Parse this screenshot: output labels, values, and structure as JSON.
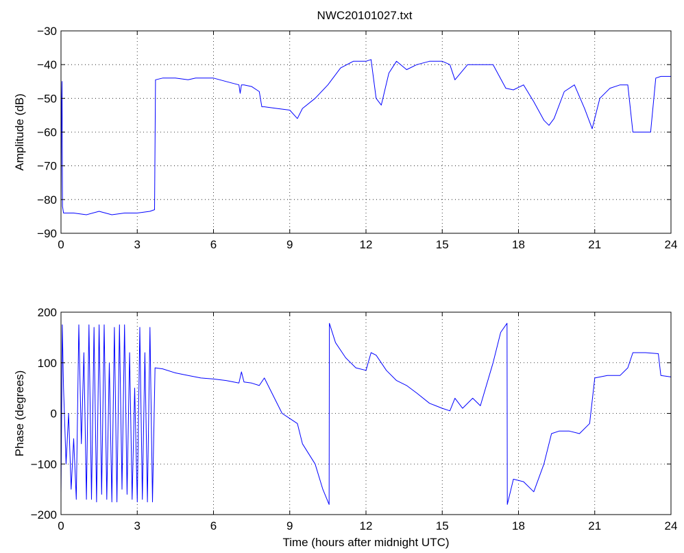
{
  "figure": {
    "title": "NWC20101027.txt"
  },
  "chart_data": [
    {
      "type": "line",
      "title": "NWC20101027.txt",
      "xlabel": "",
      "ylabel": "Amplitude (dB)",
      "xlim": [
        0,
        24
      ],
      "ylim": [
        -90,
        -30
      ],
      "xticks": [
        0,
        3,
        6,
        9,
        12,
        15,
        18,
        21,
        24
      ],
      "yticks": [
        -90,
        -80,
        -70,
        -60,
        -50,
        -40,
        -30
      ],
      "xtick_labels": [
        "0",
        "3",
        "6",
        "9",
        "12",
        "15",
        "18",
        "21",
        "24"
      ],
      "ytick_labels": [
        "−90",
        "−80",
        "−70",
        "−60",
        "−50",
        "−40",
        "−30"
      ],
      "grid": true,
      "color": "#0000ff",
      "series": [
        {
          "x": [
            0,
            0.02,
            0.04,
            0.06,
            0.1,
            0.2,
            0.5,
            1.0,
            1.5,
            2.0,
            2.5,
            3.0,
            3.5,
            3.68,
            3.72,
            4.0,
            4.5,
            5.0,
            5.3,
            5.5,
            6.0,
            6.5,
            7.0,
            7.05,
            7.1,
            7.2,
            7.5,
            7.8,
            7.9,
            8.0,
            8.5,
            9.0,
            9.3,
            9.5,
            10.0,
            10.5,
            11.0,
            11.5,
            12.0,
            12.2,
            12.4,
            12.6,
            12.9,
            13.2,
            13.6,
            14.0,
            14.5,
            15.0,
            15.3,
            15.5,
            16.0,
            16.5,
            17.0,
            17.5,
            17.8,
            18.2,
            18.6,
            19.0,
            19.2,
            19.4,
            19.8,
            20.2,
            20.6,
            20.9,
            21.2,
            21.6,
            22.0,
            22.3,
            22.5,
            22.8,
            23.0,
            23.2,
            23.4,
            23.6,
            24.0
          ],
          "y": [
            -84,
            -56,
            -45,
            -82,
            -84,
            -84,
            -84,
            -84.5,
            -83.5,
            -84.5,
            -84,
            -84,
            -83.5,
            -83,
            -44.5,
            -44,
            -44,
            -44.5,
            -44,
            -44,
            -44,
            -45,
            -46,
            -48.5,
            -46,
            -46,
            -46.5,
            -48,
            -52.5,
            -52.5,
            -53,
            -53.5,
            -56,
            -53,
            -50,
            -46,
            -41,
            -39,
            -39,
            -38.5,
            -50,
            -52,
            -42.5,
            -39,
            -41.5,
            -40,
            -39,
            -39,
            -40,
            -44.5,
            -40,
            -40,
            -40,
            -47,
            -47.5,
            -46,
            -51,
            -56.5,
            -58,
            -56,
            -48,
            -46,
            -53,
            -59,
            -50,
            -47,
            -46,
            -46,
            -60,
            -60,
            -60,
            -60,
            -44,
            -43.5,
            -43.5
          ]
        }
      ]
    },
    {
      "type": "line",
      "title": "",
      "xlabel": "Time (hours after midnight UTC)",
      "ylabel": "Phase (degrees)",
      "xlim": [
        0,
        24
      ],
      "ylim": [
        -200,
        200
      ],
      "xticks": [
        0,
        3,
        6,
        9,
        12,
        15,
        18,
        21,
        24
      ],
      "yticks": [
        -200,
        -100,
        0,
        100,
        200
      ],
      "xtick_labels": [
        "0",
        "3",
        "6",
        "9",
        "12",
        "15",
        "18",
        "21",
        "24"
      ],
      "ytick_labels": [
        "−200",
        "−100",
        "0",
        "100",
        "200"
      ],
      "grid": true,
      "color": "#0000ff",
      "series": [
        {
          "x": [
            0,
            0.05,
            0.1,
            0.2,
            0.3,
            0.4,
            0.5,
            0.6,
            0.7,
            0.8,
            0.9,
            1.0,
            1.1,
            1.2,
            1.3,
            1.4,
            1.5,
            1.6,
            1.7,
            1.8,
            1.9,
            2.0,
            2.1,
            2.2,
            2.3,
            2.4,
            2.5,
            2.6,
            2.7,
            2.8,
            2.9,
            3.0,
            3.1,
            3.2,
            3.3,
            3.4,
            3.5,
            3.6,
            3.7,
            4.0,
            4.5,
            5.0,
            5.5,
            6.0,
            6.5,
            7.0,
            7.1,
            7.2,
            7.5,
            7.8,
            8.0,
            8.3,
            8.7,
            9.0,
            9.3,
            9.5,
            10.0,
            10.3,
            10.55,
            10.56,
            10.8,
            11.2,
            11.6,
            12.0,
            12.2,
            12.4,
            12.8,
            13.2,
            13.6,
            14.0,
            14.5,
            15.0,
            15.3,
            15.5,
            15.8,
            16.2,
            16.5,
            17.0,
            17.3,
            17.55,
            17.56,
            17.8,
            18.2,
            18.6,
            19.0,
            19.3,
            19.6,
            20.0,
            20.4,
            20.8,
            21.0,
            21.5,
            22.0,
            22.3,
            22.5,
            23.0,
            23.5,
            23.6,
            24.0
          ],
          "y": [
            -160,
            175,
            50,
            -100,
            0,
            -150,
            -50,
            -170,
            175,
            -60,
            120,
            -170,
            175,
            -170,
            170,
            -175,
            175,
            -160,
            175,
            -170,
            100,
            -175,
            170,
            -175,
            175,
            -150,
            175,
            -160,
            120,
            -170,
            50,
            -175,
            170,
            -170,
            120,
            -175,
            170,
            -175,
            90,
            88,
            80,
            75,
            70,
            68,
            65,
            60,
            82,
            62,
            60,
            55,
            70,
            40,
            0,
            -10,
            -20,
            -60,
            -100,
            -150,
            -180,
            178,
            140,
            110,
            90,
            85,
            120,
            115,
            85,
            65,
            55,
            40,
            20,
            10,
            5,
            30,
            10,
            30,
            15,
            100,
            160,
            178,
            -180,
            -130,
            -135,
            -155,
            -100,
            -40,
            -35,
            -35,
            -40,
            -20,
            70,
            75,
            75,
            90,
            120,
            120,
            118,
            75,
            72
          ]
        }
      ]
    }
  ]
}
